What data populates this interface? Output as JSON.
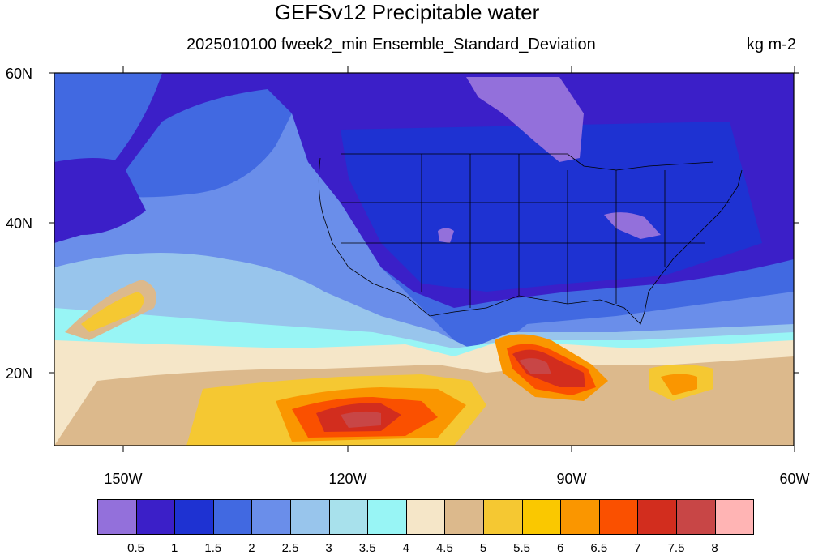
{
  "header": {
    "title": "GEFSv12 Precipitable water",
    "subtitle": "2025010100 fweek2_min Ensemble_Standard_Deviation",
    "units": "kg m-2"
  },
  "axes": {
    "lat_labels": [
      "60N",
      "40N",
      "20N"
    ],
    "lon_labels": [
      "150W",
      "120W",
      "90W",
      "60W"
    ]
  },
  "colorbar": {
    "colors": [
      "#9370db",
      "#3b1fc8",
      "#1e32d2",
      "#4169e1",
      "#6a8eea",
      "#98c5ec",
      "#a8e1ec",
      "#98f5f5",
      "#f5e6c8",
      "#dcb98c",
      "#f5c832",
      "#fac800",
      "#fa9600",
      "#fa5000",
      "#d22d1e",
      "#c84646",
      "#ffb4b4"
    ],
    "labels": [
      "0.5",
      "1",
      "1.5",
      "2",
      "2.5",
      "3",
      "3.5",
      "4",
      "4.5",
      "5",
      "5.5",
      "6",
      "6.5",
      "7",
      "7.5",
      "8"
    ]
  }
}
